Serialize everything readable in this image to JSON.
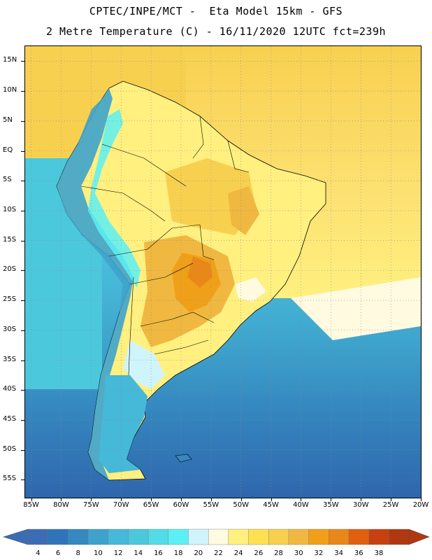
{
  "title": {
    "line1": "CPTEC/INPE/MCT -  Eta Model 15km - GFS",
    "line2": "2 Metre Temperature (C) - 16/11/2020 12UTC fct=239h"
  },
  "axes": {
    "lat_labels": [
      "15N",
      "10N",
      "5N",
      "EQ",
      "5S",
      "10S",
      "15S",
      "20S",
      "25S",
      "30S",
      "35S",
      "40S",
      "45S",
      "50S",
      "55S"
    ],
    "lon_labels": [
      "85W",
      "80W",
      "75W",
      "70W",
      "65W",
      "60W",
      "55W",
      "50W",
      "45W",
      "40W",
      "35W",
      "30W",
      "25W",
      "20W"
    ],
    "lat_range": [
      17.5,
      -58
    ],
    "lon_range": [
      -86,
      -20
    ]
  },
  "colorbar": {
    "labels": [
      "4",
      "6",
      "8",
      "10",
      "12",
      "14",
      "16",
      "18",
      "20",
      "22",
      "24",
      "26",
      "28",
      "30",
      "32",
      "34",
      "36",
      "38"
    ],
    "colors": [
      "#3c6cb4",
      "#2f74b8",
      "#3588c0",
      "#3ea3cc",
      "#46b8d8",
      "#4cc8dc",
      "#52dce8",
      "#5cf0f4",
      "#d0f4fc",
      "#fffae0",
      "#fff080",
      "#ffe050",
      "#f8d050",
      "#f0b840",
      "#f0a018",
      "#e88818",
      "#e06010",
      "#c84010",
      "#b03810"
    ],
    "under_color": "#3c6cb4",
    "over_color": "#b03810"
  },
  "colors": {
    "frame": "#000000",
    "grid": "#888888"
  }
}
